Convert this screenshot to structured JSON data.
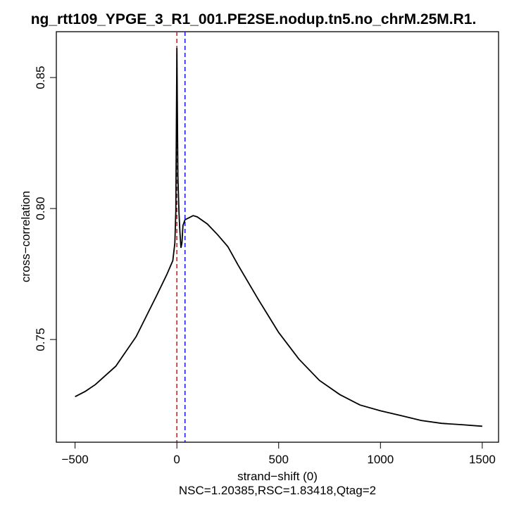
{
  "chart_data": {
    "type": "line",
    "title": "ng_rtt109_YPGE_3_R1_001.PE2SE.nodup.tn5.no_chrM.25M.R1.",
    "xlabel": "strand−shift (0)",
    "subtitle": "NSC=1.20385,RSC=1.83418,Qtag=2",
    "ylabel": "cross−correlation",
    "xlim": [
      -592,
      1580
    ],
    "ylim": [
      0.7108,
      0.8675
    ],
    "xticks": [
      -500,
      0,
      500,
      1000,
      1500
    ],
    "xtick_labels": [
      "−500",
      "0",
      "500",
      "1000",
      "1500"
    ],
    "yticks": [
      0.75,
      0.8,
      0.85
    ],
    "ytick_labels": [
      "0.75",
      "0.80",
      "0.85"
    ],
    "vlines": [
      {
        "x": 0,
        "color": "#d62020",
        "style": "dashed"
      },
      {
        "x": 40,
        "color": "#1a1aff",
        "style": "dashed"
      }
    ],
    "series": [
      {
        "name": "cross-correlation",
        "color": "#000000",
        "x": [
          -500,
          -450,
          -400,
          -300,
          -200,
          -100,
          -50,
          -20,
          -10,
          -5,
          0,
          5,
          10,
          15,
          20,
          25,
          30,
          40,
          60,
          80,
          100,
          150,
          200,
          250,
          300,
          400,
          500,
          600,
          700,
          800,
          900,
          1000,
          1100,
          1200,
          1300,
          1400,
          1500
        ],
        "y": [
          0.7282,
          0.7302,
          0.7328,
          0.7398,
          0.7511,
          0.7667,
          0.7747,
          0.7801,
          0.7868,
          0.799,
          0.8613,
          0.8124,
          0.799,
          0.791,
          0.785,
          0.787,
          0.7935,
          0.7957,
          0.7965,
          0.7973,
          0.7968,
          0.7941,
          0.79,
          0.7855,
          0.7785,
          0.7653,
          0.7527,
          0.7425,
          0.7344,
          0.729,
          0.725,
          0.7228,
          0.721,
          0.7191,
          0.718,
          0.7175,
          0.7169
        ]
      }
    ]
  }
}
